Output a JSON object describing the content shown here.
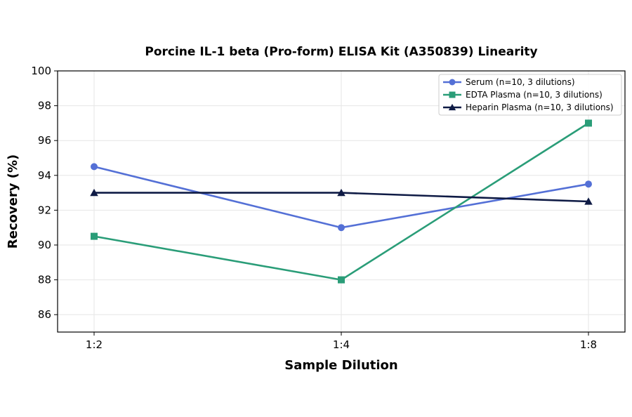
{
  "chart_data": {
    "type": "line",
    "title": "Porcine IL-1 beta (Pro-form) ELISA Kit (A350839) Linearity",
    "xlabel": "Sample Dilution",
    "ylabel": "Recovery (%)",
    "categories": [
      "1:2",
      "1:4",
      "1:8"
    ],
    "ylim": [
      85,
      100
    ],
    "yticks": [
      86,
      88,
      90,
      92,
      94,
      96,
      98,
      100
    ],
    "grid": true,
    "legend_position": "top-right",
    "series": [
      {
        "name": "Serum (n=10, 3 dilutions)",
        "values": [
          94.5,
          91.0,
          93.5
        ],
        "color": "#5470d6",
        "marker": "circle"
      },
      {
        "name": "EDTA Plasma (n=10, 3 dilutions)",
        "values": [
          90.5,
          88.0,
          97.0
        ],
        "color": "#2a9d78",
        "marker": "square"
      },
      {
        "name": "Heparin Plasma (n=10, 3 dilutions)",
        "values": [
          93.0,
          93.0,
          92.5
        ],
        "color": "#0f1b45",
        "marker": "triangle"
      }
    ]
  }
}
